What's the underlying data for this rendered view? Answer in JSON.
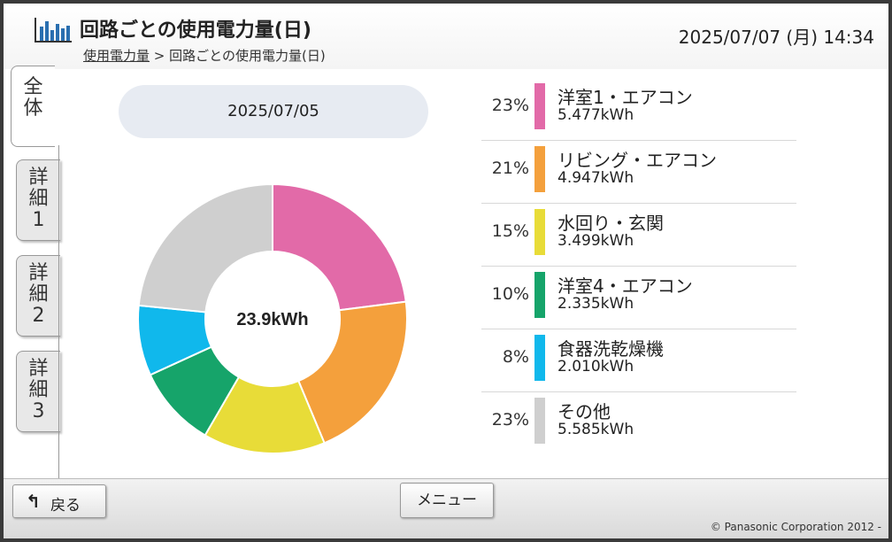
{
  "header": {
    "title": "回路ごとの使用電力量(日)",
    "datetime": "2025/07/07 (月) 14:34",
    "breadcrumb": {
      "parent": "使用電力量",
      "separator": ">",
      "current": "回路ごとの使用電力量(日)"
    }
  },
  "tabs": [
    {
      "line1": "全",
      "line2": "体",
      "line3": "",
      "active": true
    },
    {
      "line1": "詳",
      "line2": "細",
      "line3": "1",
      "active": false
    },
    {
      "line1": "詳",
      "line2": "細",
      "line3": "2",
      "active": false
    },
    {
      "line1": "詳",
      "line2": "細",
      "line3": "3",
      "active": false
    }
  ],
  "main": {
    "date": "2025/07/05",
    "total": "23.9kWh"
  },
  "legend": [
    {
      "percent": "23%",
      "name": "洋室1・エアコン",
      "value": "5.477kWh",
      "color": "#e26aa8"
    },
    {
      "percent": "21%",
      "name": "リビング・エアコン",
      "value": "4.947kWh",
      "color": "#f4a03c"
    },
    {
      "percent": "15%",
      "name": "水回り・玄関",
      "value": "3.499kWh",
      "color": "#e8dc38"
    },
    {
      "percent": "10%",
      "name": "洋室4・エアコン",
      "value": "2.335kWh",
      "color": "#16a46a"
    },
    {
      "percent": "8%",
      "name": "食器洗乾燥機",
      "value": "2.010kWh",
      "color": "#10b8ec"
    },
    {
      "percent": "23%",
      "name": "その他",
      "value": "5.585kWh",
      "color": "#cfcfcf"
    }
  ],
  "footer": {
    "back_label": "戻る",
    "back_icon": "return-arrow-icon",
    "menu_label": "メニュー",
    "copyright": "© Panasonic Corporation 2012 -"
  },
  "icons": {
    "app": "bar-chart-icon"
  }
}
